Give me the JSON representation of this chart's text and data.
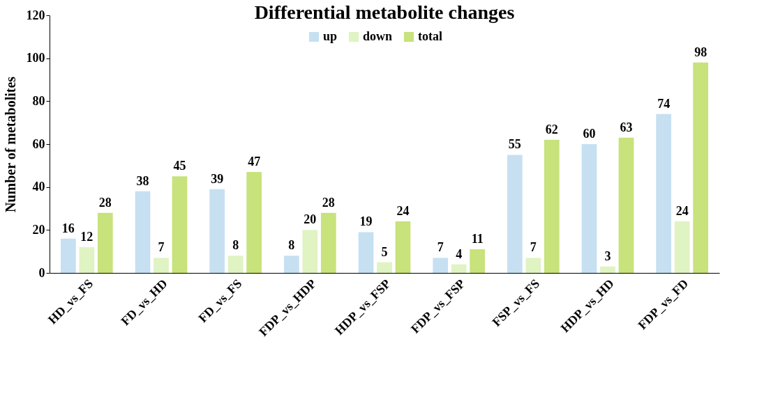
{
  "chart_data": {
    "type": "bar",
    "title": "Differential metabolite changes",
    "ylabel": "Number of metabolites",
    "categories": [
      "HD_vs_FS",
      "FD_vs_HD",
      "FD_vs_FS",
      "FDP_vs_HDP",
      "HDP_vs_FSP",
      "FDP_vs_FSP",
      "FSP_vs_FS",
      "HDP_vs_HD",
      "FDP_vs_FD"
    ],
    "series": [
      {
        "name": "up",
        "color": "#c6e0f2",
        "values": [
          16,
          38,
          39,
          8,
          19,
          7,
          55,
          60,
          74
        ]
      },
      {
        "name": "down",
        "color": "#e0f3c3",
        "values": [
          12,
          7,
          8,
          20,
          5,
          4,
          7,
          3,
          24
        ]
      },
      {
        "name": "total",
        "color": "#c8e27c",
        "values": [
          28,
          45,
          47,
          28,
          24,
          11,
          62,
          63,
          98
        ]
      }
    ],
    "ylim": [
      0,
      120
    ],
    "yticks": [
      0,
      20,
      40,
      60,
      80,
      100,
      120
    ],
    "grid": false,
    "legend": "top",
    "data_labels": true
  }
}
